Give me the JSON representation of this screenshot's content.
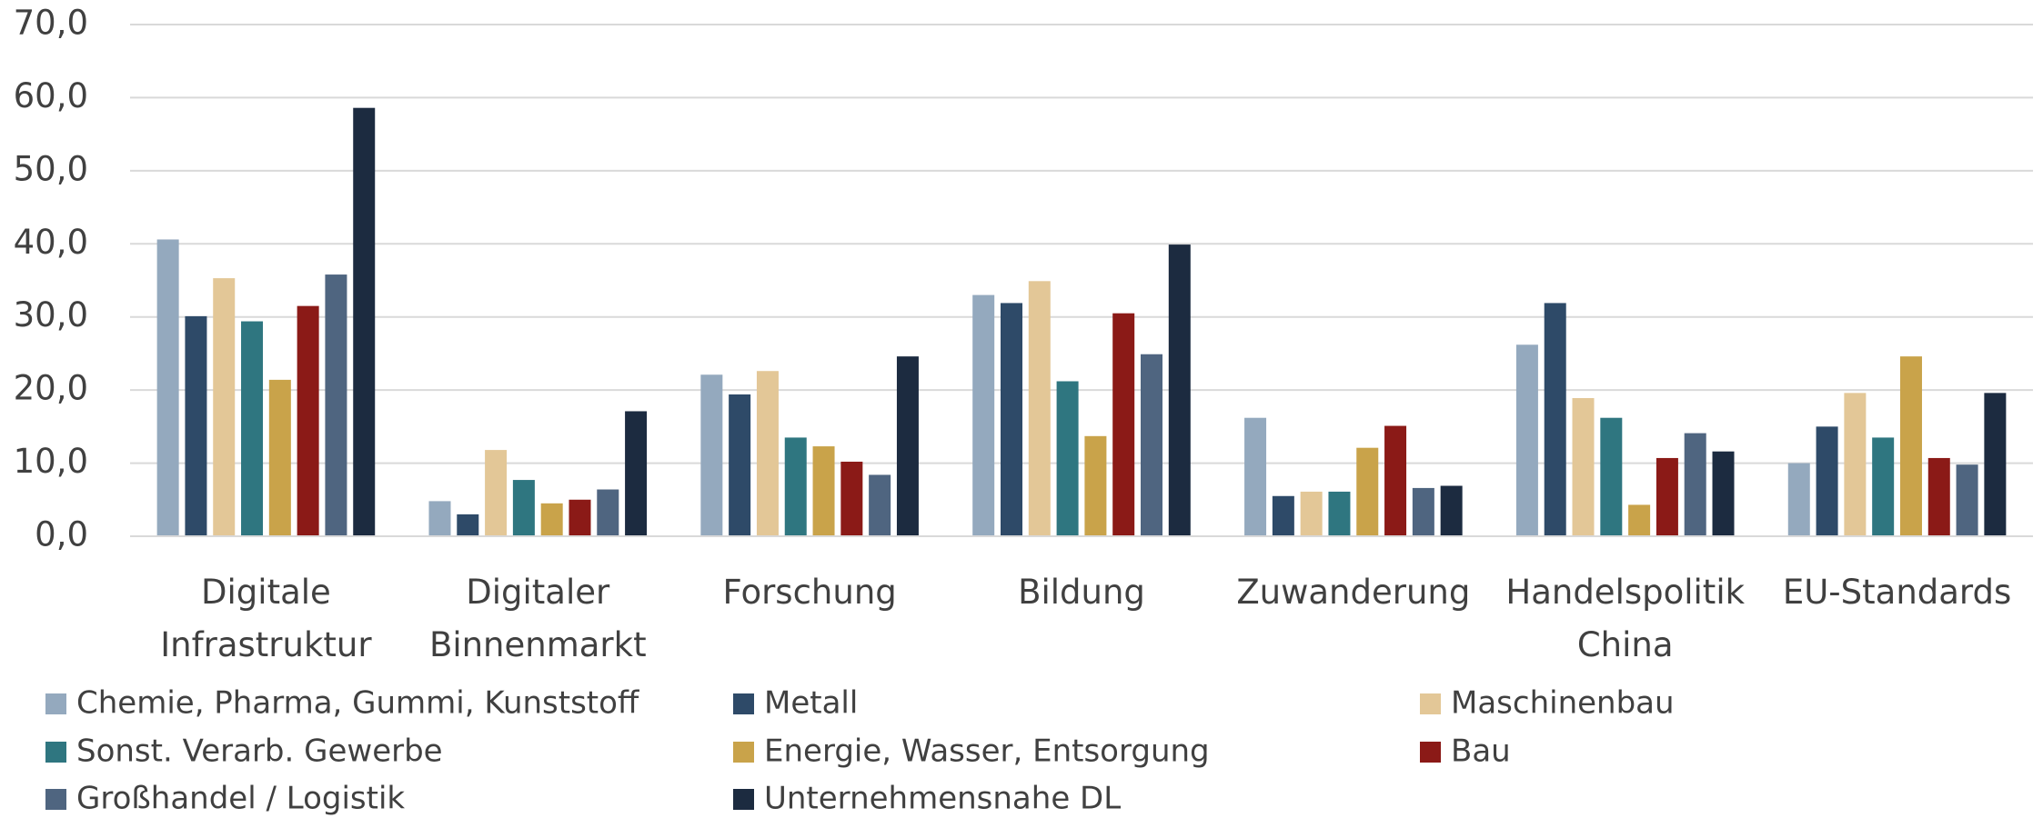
{
  "chart_data": {
    "type": "bar",
    "categories": [
      "Digitale Infrastruktur",
      "Digitaler Binnenmarkt",
      "Forschung",
      "Bildung",
      "Zuwanderung",
      "Handelspolitik China",
      "EU-Standards"
    ],
    "series": [
      {
        "name": "Chemie, Pharma, Gummi, Kunststoff",
        "color": "#94a9be",
        "values": [
          40.6,
          4.8,
          22.1,
          33.0,
          16.2,
          26.2,
          10.0
        ]
      },
      {
        "name": "Metall",
        "color": "#2e4a68",
        "values": [
          30.1,
          3.0,
          19.4,
          31.9,
          5.5,
          31.9,
          15.0
        ]
      },
      {
        "name": "Maschinenbau",
        "color": "#e3c797",
        "values": [
          35.3,
          11.8,
          22.6,
          34.9,
          6.1,
          18.9,
          19.6
        ]
      },
      {
        "name": "Sonst. Verarb. Gewerbe",
        "color": "#2f7680",
        "values": [
          29.4,
          7.7,
          13.5,
          21.2,
          6.1,
          16.2,
          13.5
        ]
      },
      {
        "name": "Energie, Wasser, Entsorgung",
        "color": "#c9a34a",
        "values": [
          21.4,
          4.5,
          12.3,
          13.7,
          12.1,
          4.3,
          24.6
        ]
      },
      {
        "name": "Bau",
        "color": "#8b1a17",
        "values": [
          31.5,
          5.0,
          10.2,
          30.5,
          15.1,
          10.7,
          10.7
        ]
      },
      {
        "name": "Großhandel / Logistik",
        "color": "#4f6580",
        "values": [
          35.8,
          6.4,
          8.4,
          24.9,
          6.6,
          14.1,
          9.8
        ]
      },
      {
        "name": "Unternehmensnahe DL",
        "color": "#1c2b40",
        "values": [
          58.6,
          17.1,
          24.6,
          39.9,
          6.9,
          11.6,
          19.6
        ]
      }
    ],
    "ylim": [
      0,
      70
    ],
    "yticks": [
      {
        "value": 0,
        "label": "0,0"
      },
      {
        "value": 10,
        "label": "10,0"
      },
      {
        "value": 20,
        "label": "20,0"
      },
      {
        "value": 30,
        "label": "30,0"
      },
      {
        "value": 40,
        "label": "40,0"
      },
      {
        "value": 50,
        "label": "50,0"
      },
      {
        "value": 60,
        "label": "60,0"
      },
      {
        "value": 70,
        "label": "70,0"
      }
    ],
    "grid": true,
    "legend": "bottom"
  }
}
